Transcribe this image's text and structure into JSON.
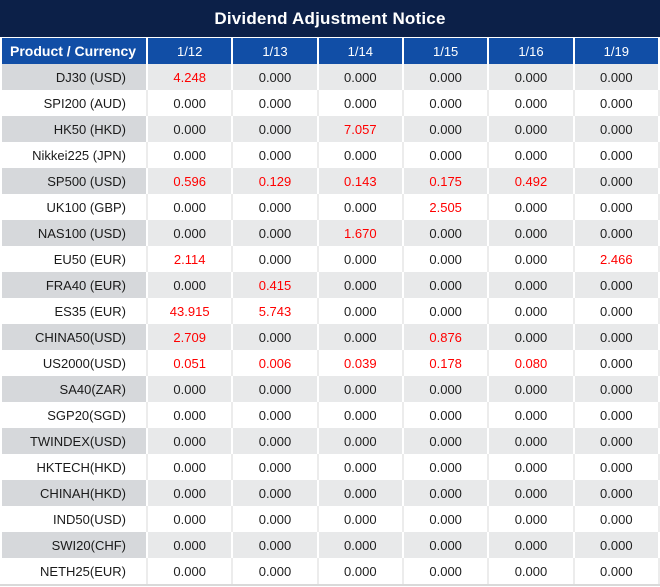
{
  "title": "Dividend Adjustment Notice",
  "colors": {
    "title_bar_bg": "#0c2048",
    "header_bg": "#114ea6",
    "gray_row_product_bg": "#d6d8db",
    "gray_row_value_bg": "#e8e9ea",
    "white_row_bg": "#ffffff",
    "highlight_value": "#ff0000",
    "text": "#1f1f1f",
    "header_text": "#ffffff"
  },
  "table": {
    "header": {
      "product_col": "Product / Currency",
      "dates": [
        "1/12",
        "1/13",
        "1/14",
        "1/15",
        "1/16",
        "1/19"
      ]
    },
    "rows": [
      {
        "product": "DJ30 (USD)",
        "values": [
          {
            "v": "4.248",
            "red": true
          },
          {
            "v": "0.000",
            "red": false
          },
          {
            "v": "0.000",
            "red": false
          },
          {
            "v": "0.000",
            "red": false
          },
          {
            "v": "0.000",
            "red": false
          },
          {
            "v": "0.000",
            "red": false
          }
        ]
      },
      {
        "product": "SPI200 (AUD)",
        "values": [
          {
            "v": "0.000",
            "red": false
          },
          {
            "v": "0.000",
            "red": false
          },
          {
            "v": "0.000",
            "red": false
          },
          {
            "v": "0.000",
            "red": false
          },
          {
            "v": "0.000",
            "red": false
          },
          {
            "v": "0.000",
            "red": false
          }
        ]
      },
      {
        "product": "HK50 (HKD)",
        "values": [
          {
            "v": "0.000",
            "red": false
          },
          {
            "v": "0.000",
            "red": false
          },
          {
            "v": "7.057",
            "red": true
          },
          {
            "v": "0.000",
            "red": false
          },
          {
            "v": "0.000",
            "red": false
          },
          {
            "v": "0.000",
            "red": false
          }
        ]
      },
      {
        "product": "Nikkei225 (JPN)",
        "values": [
          {
            "v": "0.000",
            "red": false
          },
          {
            "v": "0.000",
            "red": false
          },
          {
            "v": "0.000",
            "red": false
          },
          {
            "v": "0.000",
            "red": false
          },
          {
            "v": "0.000",
            "red": false
          },
          {
            "v": "0.000",
            "red": false
          }
        ]
      },
      {
        "product": "SP500 (USD)",
        "values": [
          {
            "v": "0.596",
            "red": true
          },
          {
            "v": "0.129",
            "red": true
          },
          {
            "v": "0.143",
            "red": true
          },
          {
            "v": "0.175",
            "red": true
          },
          {
            "v": "0.492",
            "red": true
          },
          {
            "v": "0.000",
            "red": false
          }
        ]
      },
      {
        "product": "UK100 (GBP)",
        "values": [
          {
            "v": "0.000",
            "red": false
          },
          {
            "v": "0.000",
            "red": false
          },
          {
            "v": "0.000",
            "red": false
          },
          {
            "v": "2.505",
            "red": true
          },
          {
            "v": "0.000",
            "red": false
          },
          {
            "v": "0.000",
            "red": false
          }
        ]
      },
      {
        "product": "NAS100 (USD)",
        "values": [
          {
            "v": "0.000",
            "red": false
          },
          {
            "v": "0.000",
            "red": false
          },
          {
            "v": "1.670",
            "red": true
          },
          {
            "v": "0.000",
            "red": false
          },
          {
            "v": "0.000",
            "red": false
          },
          {
            "v": "0.000",
            "red": false
          }
        ]
      },
      {
        "product": "EU50 (EUR)",
        "values": [
          {
            "v": "2.114",
            "red": true
          },
          {
            "v": "0.000",
            "red": false
          },
          {
            "v": "0.000",
            "red": false
          },
          {
            "v": "0.000",
            "red": false
          },
          {
            "v": "0.000",
            "red": false
          },
          {
            "v": "2.466",
            "red": true
          }
        ]
      },
      {
        "product": "FRA40 (EUR)",
        "values": [
          {
            "v": "0.000",
            "red": false
          },
          {
            "v": "0.415",
            "red": true
          },
          {
            "v": "0.000",
            "red": false
          },
          {
            "v": "0.000",
            "red": false
          },
          {
            "v": "0.000",
            "red": false
          },
          {
            "v": "0.000",
            "red": false
          }
        ]
      },
      {
        "product": "ES35 (EUR)",
        "values": [
          {
            "v": "43.915",
            "red": true
          },
          {
            "v": "5.743",
            "red": true
          },
          {
            "v": "0.000",
            "red": false
          },
          {
            "v": "0.000",
            "red": false
          },
          {
            "v": "0.000",
            "red": false
          },
          {
            "v": "0.000",
            "red": false
          }
        ]
      },
      {
        "product": "CHINA50(USD)",
        "values": [
          {
            "v": "2.709",
            "red": true
          },
          {
            "v": "0.000",
            "red": false
          },
          {
            "v": "0.000",
            "red": false
          },
          {
            "v": "0.876",
            "red": true
          },
          {
            "v": "0.000",
            "red": false
          },
          {
            "v": "0.000",
            "red": false
          }
        ]
      },
      {
        "product": "US2000(USD)",
        "values": [
          {
            "v": "0.051",
            "red": true
          },
          {
            "v": "0.006",
            "red": true
          },
          {
            "v": "0.039",
            "red": true
          },
          {
            "v": "0.178",
            "red": true
          },
          {
            "v": "0.080",
            "red": true
          },
          {
            "v": "0.000",
            "red": false
          }
        ]
      },
      {
        "product": "SA40(ZAR)",
        "values": [
          {
            "v": "0.000",
            "red": false
          },
          {
            "v": "0.000",
            "red": false
          },
          {
            "v": "0.000",
            "red": false
          },
          {
            "v": "0.000",
            "red": false
          },
          {
            "v": "0.000",
            "red": false
          },
          {
            "v": "0.000",
            "red": false
          }
        ]
      },
      {
        "product": "SGP20(SGD)",
        "values": [
          {
            "v": "0.000",
            "red": false
          },
          {
            "v": "0.000",
            "red": false
          },
          {
            "v": "0.000",
            "red": false
          },
          {
            "v": "0.000",
            "red": false
          },
          {
            "v": "0.000",
            "red": false
          },
          {
            "v": "0.000",
            "red": false
          }
        ]
      },
      {
        "product": "TWINDEX(USD)",
        "values": [
          {
            "v": "0.000",
            "red": false
          },
          {
            "v": "0.000",
            "red": false
          },
          {
            "v": "0.000",
            "red": false
          },
          {
            "v": "0.000",
            "red": false
          },
          {
            "v": "0.000",
            "red": false
          },
          {
            "v": "0.000",
            "red": false
          }
        ]
      },
      {
        "product": "HKTECH(HKD)",
        "values": [
          {
            "v": "0.000",
            "red": false
          },
          {
            "v": "0.000",
            "red": false
          },
          {
            "v": "0.000",
            "red": false
          },
          {
            "v": "0.000",
            "red": false
          },
          {
            "v": "0.000",
            "red": false
          },
          {
            "v": "0.000",
            "red": false
          }
        ]
      },
      {
        "product": "CHINAH(HKD)",
        "values": [
          {
            "v": "0.000",
            "red": false
          },
          {
            "v": "0.000",
            "red": false
          },
          {
            "v": "0.000",
            "red": false
          },
          {
            "v": "0.000",
            "red": false
          },
          {
            "v": "0.000",
            "red": false
          },
          {
            "v": "0.000",
            "red": false
          }
        ]
      },
      {
        "product": "IND50(USD)",
        "values": [
          {
            "v": "0.000",
            "red": false
          },
          {
            "v": "0.000",
            "red": false
          },
          {
            "v": "0.000",
            "red": false
          },
          {
            "v": "0.000",
            "red": false
          },
          {
            "v": "0.000",
            "red": false
          },
          {
            "v": "0.000",
            "red": false
          }
        ]
      },
      {
        "product": "SWI20(CHF)",
        "values": [
          {
            "v": "0.000",
            "red": false
          },
          {
            "v": "0.000",
            "red": false
          },
          {
            "v": "0.000",
            "red": false
          },
          {
            "v": "0.000",
            "red": false
          },
          {
            "v": "0.000",
            "red": false
          },
          {
            "v": "0.000",
            "red": false
          }
        ]
      },
      {
        "product": "NETH25(EUR)",
        "values": [
          {
            "v": "0.000",
            "red": false
          },
          {
            "v": "0.000",
            "red": false
          },
          {
            "v": "0.000",
            "red": false
          },
          {
            "v": "0.000",
            "red": false
          },
          {
            "v": "0.000",
            "red": false
          },
          {
            "v": "0.000",
            "red": false
          }
        ]
      }
    ]
  }
}
